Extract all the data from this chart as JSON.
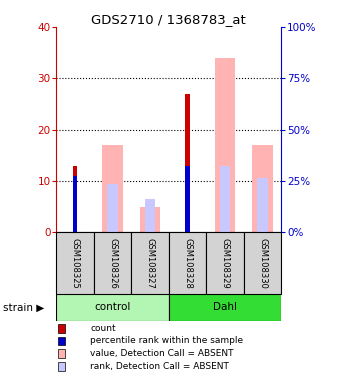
{
  "title": "GDS2710 / 1368783_at",
  "samples": [
    "GSM108325",
    "GSM108326",
    "GSM108327",
    "GSM108328",
    "GSM108329",
    "GSM108330"
  ],
  "groups": [
    "control",
    "control",
    "control",
    "Dahl",
    "Dahl",
    "Dahl"
  ],
  "group_names": [
    "control",
    "Dahl"
  ],
  "group_colors": [
    "#b3f5b3",
    "#33dd33"
  ],
  "count_values": [
    13,
    0,
    0,
    27,
    0,
    0
  ],
  "rank_values": [
    11,
    0,
    0,
    13,
    0,
    0
  ],
  "value_absent": [
    0,
    17,
    5,
    0,
    34,
    17
  ],
  "rank_absent": [
    0,
    9.5,
    6.5,
    0,
    13,
    10.5
  ],
  "ylim": [
    0,
    40
  ],
  "yticks_left": [
    0,
    10,
    20,
    30,
    40
  ],
  "yticks_right": [
    0,
    25,
    50,
    75,
    100
  ],
  "ylabel_left_color": "#cc0000",
  "ylabel_right_color": "#0000cc",
  "color_count": "#cc0000",
  "color_rank": "#0000cc",
  "color_value_absent": "#ffb3b3",
  "color_rank_absent": "#c8c8ff",
  "label_area_color": "#d3d3d3"
}
